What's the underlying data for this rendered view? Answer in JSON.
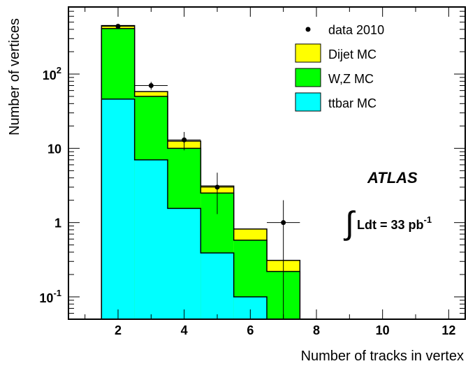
{
  "chart_data": {
    "type": "bar",
    "subtype": "stacked-histogram",
    "xlabel": "Number of tracks in vertex",
    "ylabel": "Number of vertices",
    "xlim": [
      0.5,
      12.5
    ],
    "ylim": [
      0.05,
      800
    ],
    "yscale": "log",
    "grid": false,
    "legend_position": "top-right",
    "x_ticks": [
      2,
      4,
      6,
      8,
      10,
      12
    ],
    "y_ticks": [
      {
        "value": 0.1,
        "base": "10",
        "exp": "-1"
      },
      {
        "value": 1,
        "label": "1"
      },
      {
        "value": 10,
        "label": "10"
      },
      {
        "value": 100,
        "base": "10",
        "exp": "2"
      }
    ],
    "bins": [
      {
        "lo": 1.5,
        "hi": 2.5
      },
      {
        "lo": 2.5,
        "hi": 3.5
      },
      {
        "lo": 3.5,
        "hi": 4.5
      },
      {
        "lo": 4.5,
        "hi": 5.5
      },
      {
        "lo": 5.5,
        "hi": 6.5
      },
      {
        "lo": 6.5,
        "hi": 7.5
      }
    ],
    "series": [
      {
        "name": "ttbar MC",
        "color": "#00ffff",
        "stack_top": [
          46,
          7,
          1.55,
          0.39,
          0.1,
          0.05
        ]
      },
      {
        "name": "W,Z MC",
        "color": "#00ff00",
        "stack_top": [
          410,
          50,
          10,
          2.5,
          0.58,
          0.22
        ]
      },
      {
        "name": "Dijet MC",
        "color": "#ffff00",
        "stack_top": [
          450,
          58,
          12.5,
          3.1,
          0.82,
          0.31
        ]
      }
    ],
    "data": {
      "name": "data 2010",
      "points": [
        {
          "x": 2,
          "y": 440,
          "yerr": [
            21,
            21
          ]
        },
        {
          "x": 3,
          "y": 70,
          "yerr": [
            8.4,
            8.4
          ]
        },
        {
          "x": 4,
          "y": 13,
          "yerr": [
            3.6,
            3.6
          ]
        },
        {
          "x": 5,
          "y": 3,
          "yerr": [
            1.7,
            1.7
          ]
        },
        {
          "x": 7,
          "y": 1,
          "yerr": [
            1,
            1
          ]
        }
      ]
    },
    "annotations": {
      "experiment": "ATLAS",
      "lumi_prefix": "Ldt = 33 pb",
      "lumi_exp": "-1"
    }
  }
}
